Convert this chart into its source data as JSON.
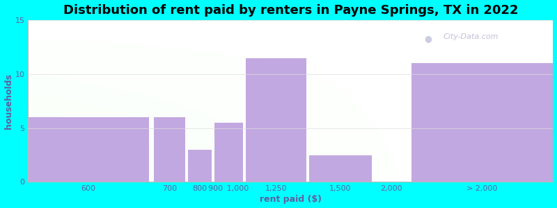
{
  "title": "Distribution of rent paid by renters in Payne Springs, TX in 2022",
  "xlabel": "rent paid ($)",
  "ylabel": "households",
  "bar_color": "#c2a8e0",
  "background_color": "#00ffff",
  "watermark": "City-Data.com",
  "ylim": [
    0,
    15
  ],
  "yticks": [
    0,
    5,
    10,
    15
  ],
  "bin_edges": [
    0,
    1,
    2,
    3,
    4,
    5,
    6,
    7,
    8
  ],
  "heights": [
    6,
    6,
    3,
    5.5,
    11.5,
    2.5,
    11,
    11
  ],
  "xtick_positions": [
    0.5,
    1.5,
    2.5,
    3.5,
    4.5,
    5.5,
    6.5,
    7.5
  ],
  "xtick_labels": [
    "600",
    "700",
    "800",
    "900 1,000",
    "1,250",
    "1,500",
    "2,000",
    "> 2,000"
  ],
  "bar_widths": [
    1,
    1,
    1,
    1,
    1,
    1,
    1,
    1
  ],
  "gap_bars": [
    false,
    true,
    false,
    false,
    false,
    true,
    false,
    false
  ],
  "title_fontsize": 13,
  "label_fontsize": 9,
  "tick_fontsize": 8,
  "grid_color": "#dddddd",
  "text_color": "#6060a0"
}
